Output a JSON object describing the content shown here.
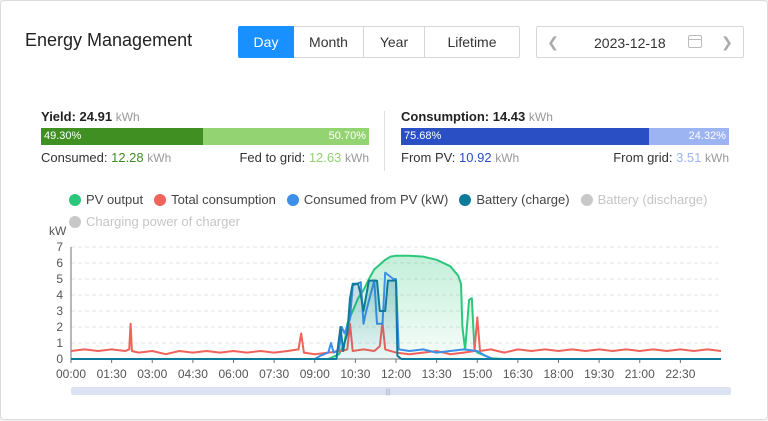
{
  "header": {
    "title": "Energy Management",
    "tabs": [
      "Day",
      "Month",
      "Year",
      "Lifetime"
    ],
    "active_tab": "Day",
    "date": "2023-12-18"
  },
  "yield": {
    "label": "Yield:",
    "value": "24.91",
    "unit": "kWh",
    "left_pct": "49.30%",
    "right_pct": "50.70%",
    "left_fraction": 0.493,
    "left_color": "#3f8f23",
    "right_color": "#93d372",
    "left_label": "Consumed:",
    "left_value": "12.28",
    "left_unit": "kWh",
    "right_label": "Fed to grid:",
    "right_value": "12.63",
    "right_unit": "kWh"
  },
  "consumption": {
    "label": "Consumption:",
    "value": "14.43",
    "unit": "kWh",
    "left_pct": "75.68%",
    "right_pct": "24.32%",
    "left_fraction": 0.7568,
    "left_color": "#2a4fc4",
    "right_color": "#9db4f3",
    "left_label": "From PV:",
    "left_value": "10.92",
    "left_unit": "kWh",
    "right_label": "From grid:",
    "right_value": "3.51",
    "right_unit": "kWh"
  },
  "legend": [
    {
      "name": "PV output",
      "color": "#2bc77a",
      "active": true
    },
    {
      "name": "Total consumption",
      "color": "#f0625a",
      "active": true
    },
    {
      "name": "Consumed from PV (kW)",
      "color": "#3d8fe8",
      "active": true
    },
    {
      "name": "Battery (charge)",
      "color": "#0f7b9a",
      "active": true
    },
    {
      "name": "Battery (discharge)",
      "color": "#c8c8c8",
      "active": false
    },
    {
      "name": "Charging power of charger",
      "color": "#c8c8c8",
      "active": false
    }
  ],
  "chart_data": {
    "type": "line",
    "ylabel": "kW",
    "ylim": [
      0,
      7
    ],
    "yticks": [
      0,
      1,
      2,
      3,
      4,
      5,
      6,
      7
    ],
    "xlim": [
      0,
      24
    ],
    "xticks": [
      "00:00",
      "01:30",
      "03:00",
      "04:30",
      "06:00",
      "07:30",
      "09:00",
      "10:30",
      "12:00",
      "13:30",
      "15:00",
      "16:30",
      "18:00",
      "19:30",
      "21:00",
      "22:30"
    ],
    "grid": "horizontal dashed",
    "series": [
      {
        "name": "PV output",
        "color": "#2bc77a",
        "area": true,
        "points": [
          [
            0,
            0
          ],
          [
            9.5,
            0
          ],
          [
            9.9,
            0.3
          ],
          [
            10.1,
            1.0
          ],
          [
            10.2,
            2.2
          ],
          [
            10.4,
            3.0
          ],
          [
            10.6,
            3.8
          ],
          [
            10.8,
            4.3
          ],
          [
            11.0,
            5.0
          ],
          [
            11.2,
            5.6
          ],
          [
            11.4,
            5.9
          ],
          [
            11.6,
            6.2
          ],
          [
            11.8,
            6.4
          ],
          [
            12.0,
            6.45
          ],
          [
            12.5,
            6.45
          ],
          [
            13.0,
            6.4
          ],
          [
            13.5,
            6.2
          ],
          [
            14.0,
            5.8
          ],
          [
            14.3,
            5.2
          ],
          [
            14.4,
            4.7
          ],
          [
            14.45,
            2.0
          ],
          [
            14.55,
            0.6
          ],
          [
            14.7,
            3.7
          ],
          [
            14.8,
            3.8
          ],
          [
            14.9,
            0.6
          ],
          [
            15.0,
            0.4
          ],
          [
            15.3,
            0.2
          ],
          [
            15.5,
            0.05
          ],
          [
            16.0,
            0
          ],
          [
            24,
            0
          ]
        ]
      },
      {
        "name": "Total consumption",
        "color": "#f0625a",
        "area": false,
        "points": [
          [
            0,
            0.5
          ],
          [
            0.5,
            0.6
          ],
          [
            1.0,
            0.5
          ],
          [
            1.5,
            0.6
          ],
          [
            2.0,
            0.5
          ],
          [
            2.15,
            0.6
          ],
          [
            2.2,
            2.2
          ],
          [
            2.25,
            0.5
          ],
          [
            2.5,
            0.4
          ],
          [
            3.0,
            0.5
          ],
          [
            3.5,
            0.3
          ],
          [
            4.0,
            0.5
          ],
          [
            4.5,
            0.4
          ],
          [
            5.0,
            0.5
          ],
          [
            5.5,
            0.4
          ],
          [
            6.0,
            0.5
          ],
          [
            6.5,
            0.4
          ],
          [
            7.0,
            0.5
          ],
          [
            7.5,
            0.4
          ],
          [
            8.0,
            0.5
          ],
          [
            8.4,
            0.6
          ],
          [
            8.5,
            1.6
          ],
          [
            8.6,
            0.4
          ],
          [
            9.0,
            0.3
          ],
          [
            9.5,
            0.4
          ],
          [
            10.0,
            0.5
          ],
          [
            10.2,
            0.6
          ],
          [
            10.3,
            2.2
          ],
          [
            10.4,
            0.5
          ],
          [
            10.8,
            0.6
          ],
          [
            11.2,
            0.5
          ],
          [
            11.4,
            0.8
          ],
          [
            11.5,
            2.3
          ],
          [
            11.6,
            0.6
          ],
          [
            12.0,
            0.4
          ],
          [
            12.5,
            0.3
          ],
          [
            13.0,
            0.4
          ],
          [
            13.5,
            0.5
          ],
          [
            14.0,
            0.3
          ],
          [
            14.5,
            0.4
          ],
          [
            14.9,
            0.5
          ],
          [
            15.0,
            2.6
          ],
          [
            15.1,
            0.5
          ],
          [
            15.5,
            0.6
          ],
          [
            16.0,
            0.4
          ],
          [
            16.5,
            0.6
          ],
          [
            17.0,
            0.5
          ],
          [
            17.5,
            0.6
          ],
          [
            18.0,
            0.5
          ],
          [
            18.5,
            0.6
          ],
          [
            19.0,
            0.5
          ],
          [
            19.5,
            0.6
          ],
          [
            20.0,
            0.5
          ],
          [
            20.5,
            0.6
          ],
          [
            21.0,
            0.5
          ],
          [
            21.5,
            0.6
          ],
          [
            22.0,
            0.5
          ],
          [
            22.5,
            0.6
          ],
          [
            23.0,
            0.5
          ],
          [
            23.5,
            0.6
          ],
          [
            24,
            0.5
          ]
        ]
      },
      {
        "name": "Consumed from PV (kW)",
        "color": "#3d8fe8",
        "area": false,
        "points": [
          [
            0,
            0
          ],
          [
            9.0,
            0
          ],
          [
            9.2,
            0.2
          ],
          [
            9.5,
            0.4
          ],
          [
            9.6,
            1.0
          ],
          [
            9.7,
            0.4
          ],
          [
            9.9,
            0.6
          ],
          [
            10.0,
            2.0
          ],
          [
            10.1,
            1.6
          ],
          [
            10.3,
            2.5
          ],
          [
            10.4,
            4.6
          ],
          [
            10.7,
            4.8
          ],
          [
            10.8,
            2.2
          ],
          [
            10.9,
            3.0
          ],
          [
            11.2,
            4.9
          ],
          [
            11.3,
            2.2
          ],
          [
            11.5,
            2.2
          ],
          [
            11.6,
            5.4
          ],
          [
            11.9,
            5.0
          ],
          [
            12.0,
            5.0
          ],
          [
            12.1,
            0.6
          ],
          [
            12.5,
            0.5
          ],
          [
            13.0,
            0.6
          ],
          [
            13.5,
            0.4
          ],
          [
            14.0,
            0.5
          ],
          [
            14.5,
            0.6
          ],
          [
            15.0,
            0.5
          ],
          [
            15.3,
            0.2
          ],
          [
            15.6,
            0
          ],
          [
            24,
            0
          ]
        ]
      },
      {
        "name": "Battery (charge)",
        "color": "#0f7b9a",
        "area": true,
        "points": [
          [
            0,
            0
          ],
          [
            9.8,
            0
          ],
          [
            9.95,
            2.0
          ],
          [
            10.05,
            0.5
          ],
          [
            10.1,
            1.0
          ],
          [
            10.2,
            1.6
          ],
          [
            10.3,
            3.8
          ],
          [
            10.4,
            4.7
          ],
          [
            10.6,
            4.7
          ],
          [
            10.7,
            4.0
          ],
          [
            10.8,
            3.0
          ],
          [
            11.0,
            4.9
          ],
          [
            11.3,
            4.9
          ],
          [
            11.4,
            3.0
          ],
          [
            11.6,
            3.0
          ],
          [
            11.7,
            4.9
          ],
          [
            12.0,
            4.9
          ],
          [
            12.05,
            0.2
          ],
          [
            12.2,
            0
          ],
          [
            24,
            0
          ]
        ]
      }
    ]
  },
  "scrollbar": {
    "handle_glyph": "|||"
  }
}
